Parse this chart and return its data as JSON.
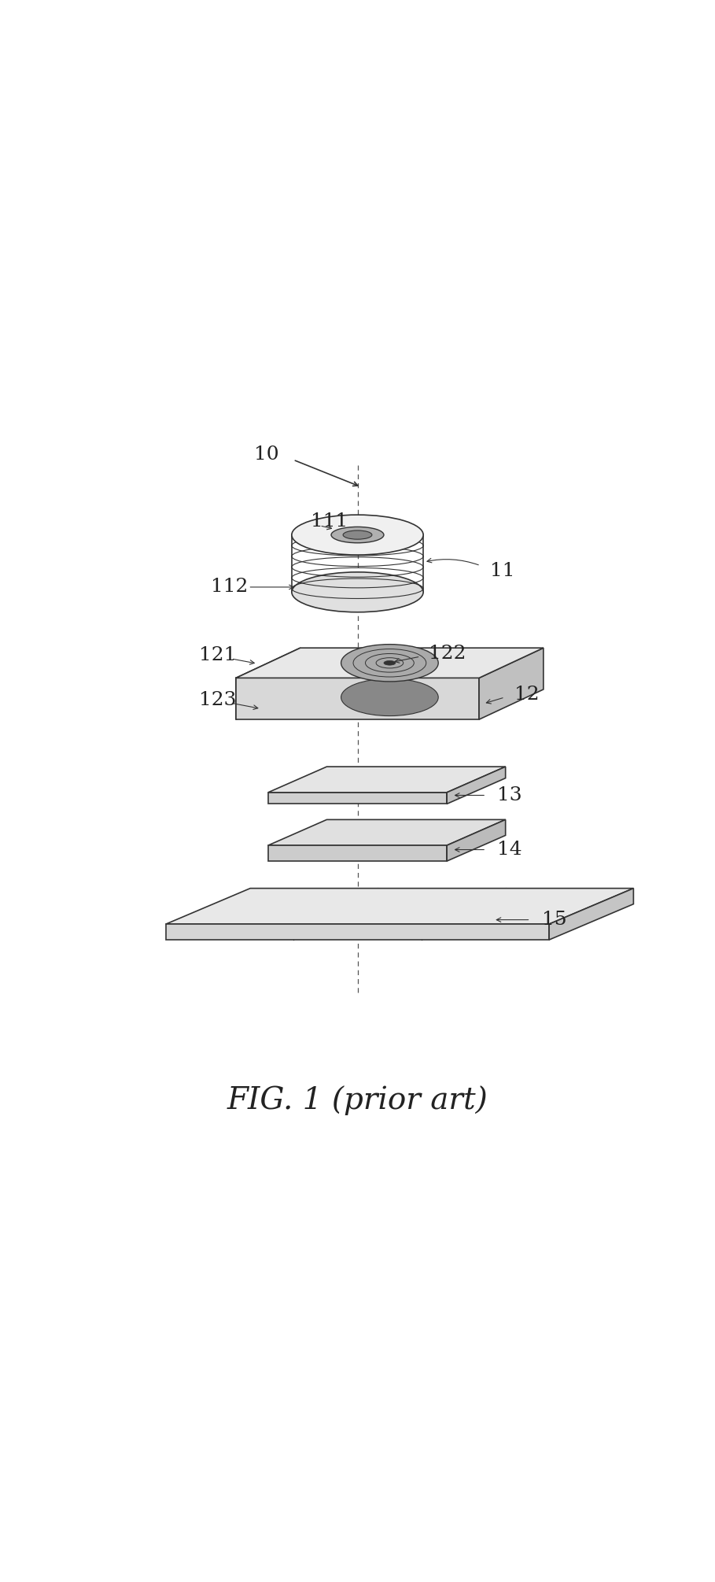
{
  "title": "FIG. 1 (prior art)",
  "title_fontsize": 28,
  "title_font": "serif",
  "bg_color": "#ffffff",
  "line_color": "#333333",
  "label_color": "#222222",
  "label_fontsize": 18,
  "label_font": "serif",
  "fig_width": 9.09,
  "fig_height": 20.1
}
